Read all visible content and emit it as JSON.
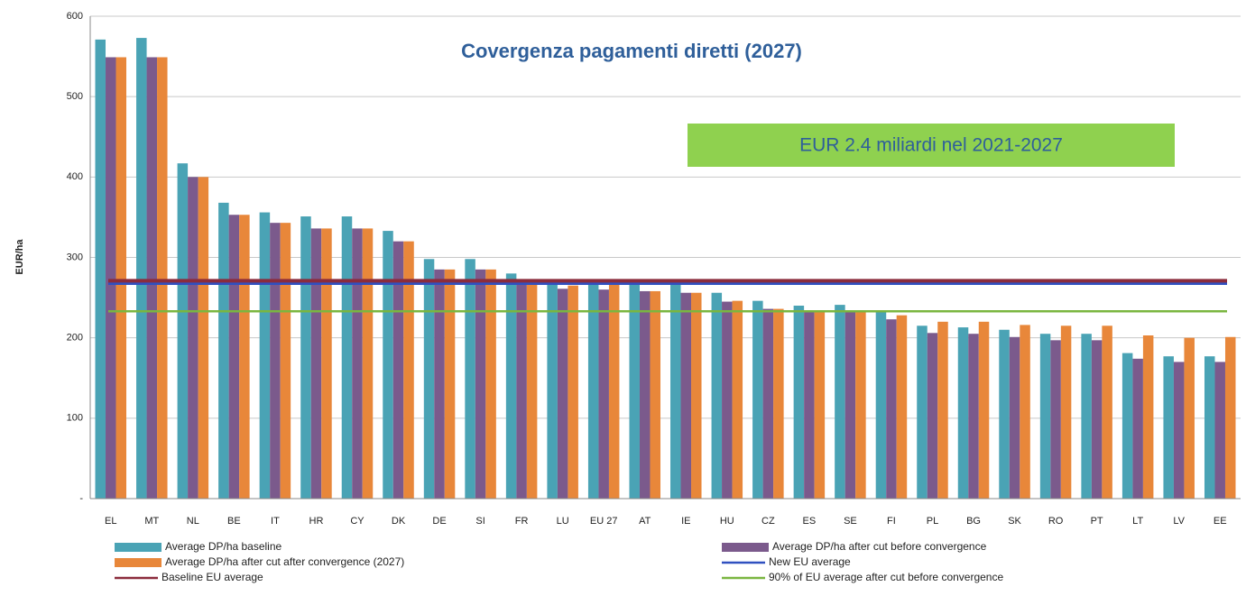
{
  "chart_data": {
    "type": "bar",
    "title": "Covergenza pagamenti diretti (2027)",
    "annotation": "EUR 2.4 miliardi nel 2021-2027",
    "y_label": "EUR/ha",
    "categories": [
      "EL",
      "MT",
      "NL",
      "BE",
      "IT",
      "HR",
      "CY",
      "DK",
      "DE",
      "SI",
      "FR",
      "LU",
      "EU 27",
      "AT",
      "IE",
      "HU",
      "CZ",
      "ES",
      "SE",
      "FI",
      "PL",
      "BG",
      "SK",
      "RO",
      "PT",
      "LT",
      "LV",
      "EE"
    ],
    "series": [
      {
        "name": "Average DP/ha baseline",
        "color": "#4aa3b5",
        "values": [
          571,
          573,
          417,
          368,
          356,
          351,
          351,
          333,
          298,
          298,
          280,
          272,
          272,
          268,
          268,
          256,
          246,
          240,
          241,
          233,
          215,
          213,
          210,
          205,
          205,
          181,
          177,
          177
        ]
      },
      {
        "name": "Average DP/ha after cut before convergence",
        "color": "#7b5a8c",
        "values": [
          549,
          549,
          400,
          353,
          343,
          336,
          336,
          320,
          285,
          285,
          269,
          261,
          260,
          258,
          256,
          245,
          236,
          232,
          232,
          223,
          206,
          205,
          201,
          197,
          197,
          174,
          170,
          170
        ]
      },
      {
        "name": "Average DP/ha after cut after convergence (2027)",
        "color": "#e8873a",
        "values": [
          549,
          549,
          400,
          353,
          343,
          336,
          336,
          320,
          285,
          285,
          269,
          265,
          270,
          258,
          256,
          246,
          236,
          233,
          233,
          228,
          220,
          220,
          216,
          215,
          215,
          203,
          200,
          201
        ]
      }
    ],
    "lines": [
      {
        "name": "New EU average",
        "color": "#3050c0",
        "value": 268
      },
      {
        "name": "Baseline EU average",
        "color": "#8b2c3c",
        "value": 271
      },
      {
        "name": "90% of EU average after cut before convergence",
        "color": "#7ab640",
        "value": 233
      }
    ],
    "ylim": [
      0,
      600
    ],
    "yticks": [
      {
        "value": 0,
        "label": "-"
      },
      100,
      200,
      300,
      400,
      500,
      600
    ],
    "grid": true
  }
}
